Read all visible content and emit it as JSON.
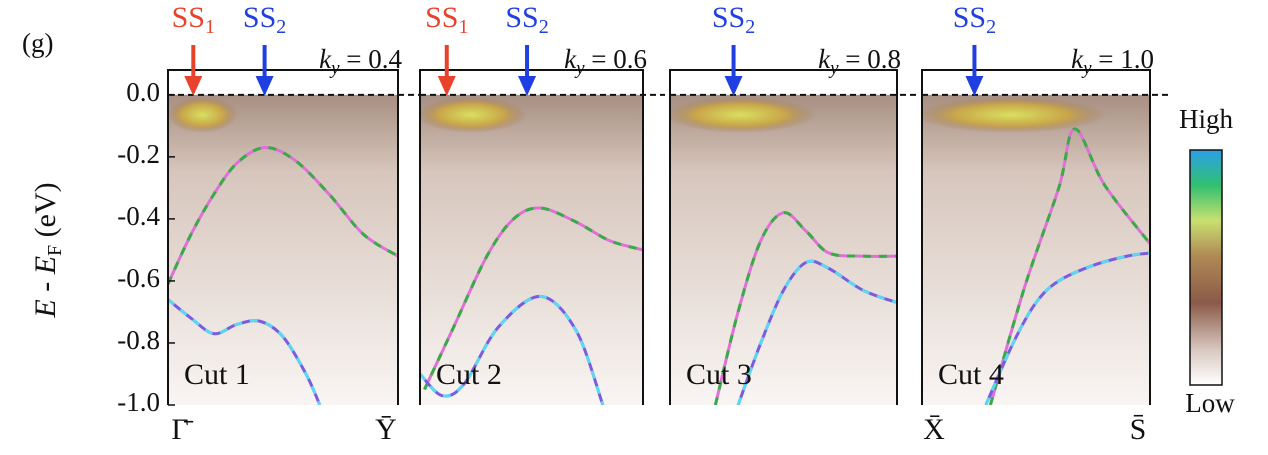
{
  "panel_label": "(g)",
  "y_label": {
    "e": "E",
    "dash": " - ",
    "ef": "E",
    "ef_sub": "F",
    "unit": " (eV)"
  },
  "colorbar": {
    "high": "High",
    "low": "Low"
  },
  "chart_data": [
    {
      "type": "line",
      "cut": "Cut 1",
      "ky": {
        "symbol": "k",
        "sub": "y",
        "value": " = 0.4"
      },
      "x_labels": [
        "Γ̄",
        "Ȳ"
      ],
      "xlim": [
        0,
        1
      ],
      "ylim": [
        -1.0,
        0.08
      ],
      "yticks": [
        {
          "value": 0,
          "label": "0.0"
        },
        -0.2,
        -0.4,
        -0.6,
        -0.8,
        {
          "value": -1,
          "label": "-1.0"
        }
      ],
      "markers": [
        {
          "label": "SS",
          "sub": "1",
          "color": "#e8412c",
          "x": 0.11
        },
        {
          "label": "SS",
          "sub": "2",
          "color": "#1f3fe0",
          "x": 0.42
        }
      ],
      "series": [
        {
          "color": "#e070d8",
          "dash_color": "#3aaa48",
          "x": [
            0,
            0.1,
            0.2,
            0.3,
            0.42,
            0.55,
            0.7,
            0.85,
            1.0
          ],
          "values": [
            -0.61,
            -0.45,
            -0.32,
            -0.22,
            -0.17,
            -0.21,
            -0.32,
            -0.45,
            -0.52
          ]
        },
        {
          "color": "#7a5ce0",
          "dash_color": "#5ad8f0",
          "x": [
            0,
            0.1,
            0.2,
            0.3,
            0.4,
            0.5,
            0.6,
            0.66
          ],
          "values": [
            -0.66,
            -0.72,
            -0.77,
            -0.74,
            -0.73,
            -0.78,
            -0.9,
            -1.0
          ]
        }
      ]
    },
    {
      "type": "line",
      "cut": "Cut 2",
      "ky": {
        "symbol": "k",
        "sub": "y",
        "value": " = 0.6"
      },
      "xlim": [
        0,
        1
      ],
      "ylim": [
        -1.0,
        0.08
      ],
      "markers": [
        {
          "label": "SS",
          "sub": "1",
          "color": "#e8412c",
          "x": 0.12
        },
        {
          "label": "SS",
          "sub": "2",
          "color": "#1f3fe0",
          "x": 0.48
        }
      ],
      "series": [
        {
          "color": "#e070d8",
          "dash_color": "#3aaa48",
          "x": [
            0.02,
            0.15,
            0.3,
            0.42,
            0.54,
            0.7,
            0.85,
            1.0
          ],
          "values": [
            -0.95,
            -0.75,
            -0.52,
            -0.4,
            -0.365,
            -0.41,
            -0.47,
            -0.5
          ]
        },
        {
          "color": "#7a5ce0",
          "dash_color": "#5ad8f0",
          "x": [
            0,
            0.1,
            0.2,
            0.35,
            0.54,
            0.7,
            0.82
          ],
          "values": [
            -0.9,
            -0.97,
            -0.93,
            -0.75,
            -0.65,
            -0.76,
            -1.0
          ]
        }
      ]
    },
    {
      "type": "line",
      "cut": "Cut 3",
      "ky": {
        "symbol": "k",
        "sub": "y",
        "value": " = 0.8"
      },
      "xlim": [
        0,
        1
      ],
      "ylim": [
        -1.0,
        0.08
      ],
      "markers": [
        {
          "label": "SS",
          "sub": "2",
          "color": "#1f3fe0",
          "x": 0.28
        }
      ],
      "series": [
        {
          "color": "#e070d8",
          "dash_color": "#3aaa48",
          "x": [
            0.2,
            0.3,
            0.4,
            0.5,
            0.6,
            0.7,
            0.85,
            1.0
          ],
          "values": [
            -1.0,
            -0.7,
            -0.47,
            -0.38,
            -0.44,
            -0.51,
            -0.52,
            -0.52
          ]
        },
        {
          "color": "#7a5ce0",
          "dash_color": "#5ad8f0",
          "x": [
            0.3,
            0.4,
            0.5,
            0.6,
            0.7,
            0.85,
            1.0
          ],
          "values": [
            -1.0,
            -0.8,
            -0.63,
            -0.54,
            -0.56,
            -0.63,
            -0.67
          ]
        }
      ]
    },
    {
      "type": "line",
      "cut": "Cut 4",
      "ky": {
        "symbol": "k",
        "sub": "y",
        "value": " = 1.0"
      },
      "x_labels": [
        "X̄",
        "S̄"
      ],
      "xlim": [
        0,
        1
      ],
      "ylim": [
        -1.0,
        0.08
      ],
      "markers": [
        {
          "label": "SS",
          "sub": "2",
          "color": "#1f3fe0",
          "x": 0.23
        }
      ],
      "series": [
        {
          "color": "#e070d8",
          "dash_color": "#3aaa48",
          "x": [
            0.3,
            0.45,
            0.6,
            0.67,
            0.8,
            1.0
          ],
          "values": [
            -1.0,
            -0.62,
            -0.3,
            -0.11,
            -0.29,
            -0.48
          ]
        },
        {
          "color": "#7a5ce0",
          "dash_color": "#5ad8f0",
          "x": [
            0.28,
            0.4,
            0.5,
            0.6,
            0.75,
            0.9,
            1.0
          ],
          "values": [
            -1.0,
            -0.8,
            -0.67,
            -0.6,
            -0.55,
            -0.52,
            -0.51
          ]
        }
      ]
    }
  ]
}
